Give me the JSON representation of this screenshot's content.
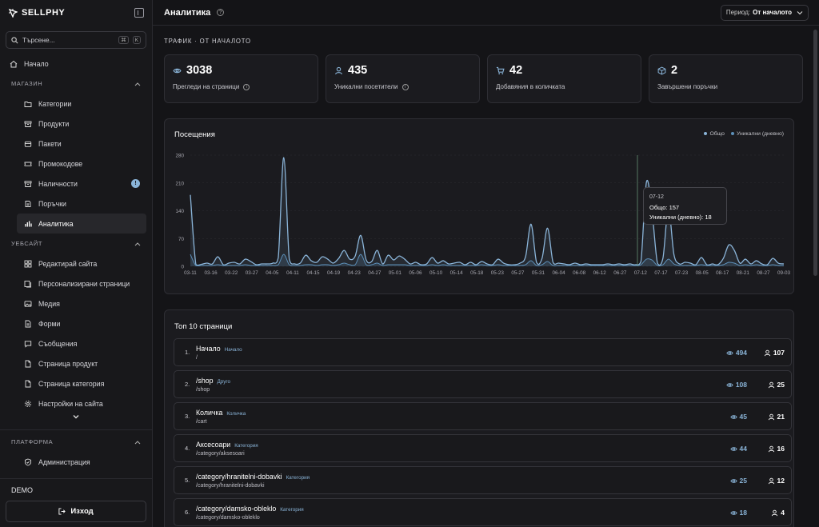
{
  "sidebar": {
    "brand": "SELLPHY",
    "search_placeholder": "Търсене...",
    "kbd1": "⌘",
    "kbd2": "K",
    "home": "Начало",
    "shop_section": "МАГАЗИН",
    "shop_items": [
      {
        "label": "Категории",
        "icon": "folder-icon"
      },
      {
        "label": "Продукти",
        "icon": "box-icon"
      },
      {
        "label": "Пакети",
        "icon": "package-icon"
      },
      {
        "label": "Промокодове",
        "icon": "ticket-icon"
      },
      {
        "label": "Наличности",
        "icon": "archive-icon",
        "badge": "!"
      },
      {
        "label": "Поръчки",
        "icon": "orders-icon"
      },
      {
        "label": "Аналитика",
        "icon": "bar-chart-icon",
        "active": true
      }
    ],
    "web_section": "УЕБСАЙТ",
    "web_items": [
      {
        "label": "Редактирай сайта",
        "icon": "grid-icon"
      },
      {
        "label": "Персонализирани страници",
        "icon": "pages-icon"
      },
      {
        "label": "Медия",
        "icon": "image-icon"
      },
      {
        "label": "Форми",
        "icon": "form-icon"
      },
      {
        "label": "Съобщения",
        "icon": "message-icon"
      },
      {
        "label": "Страница продукт",
        "icon": "file-icon"
      },
      {
        "label": "Страница категория",
        "icon": "file-icon"
      },
      {
        "label": "Настройки на сайта",
        "icon": "gear-icon"
      }
    ],
    "platform_section": "ПЛАТФОРМА",
    "platform_items": [
      {
        "label": "Администрация",
        "icon": "shield-icon"
      }
    ],
    "account_name": "DEMO",
    "logout_label": "Изход"
  },
  "header": {
    "title": "Аналитика",
    "period_label": "Период:",
    "period_value": "От началото"
  },
  "traffic": {
    "section_title": "ТРАФИК · ОТ НАЧАЛОТО",
    "stats": [
      {
        "value": "3038",
        "label": "Прегледи на страници",
        "icon": "eye-icon",
        "info": true
      },
      {
        "value": "435",
        "label": "Уникални посетители",
        "icon": "user-icon",
        "info": true
      },
      {
        "value": "42",
        "label": "Добавяния в количката",
        "icon": "cart-icon",
        "info": false
      },
      {
        "value": "2",
        "label": "Завършени поръчки",
        "icon": "cube-icon",
        "info": false
      }
    ]
  },
  "visits_card": {
    "title": "Посещения",
    "legend_total": "Общо",
    "legend_unique": "Уникални (дневно)",
    "tooltip": {
      "date": "07-12",
      "total_label": "Общо:",
      "total_value": "157",
      "unique_label": "Уникални (дневно):",
      "unique_value": "18"
    }
  },
  "chart_data": {
    "type": "area",
    "title": "Посещения",
    "y_ticks": [
      0,
      70,
      140,
      210,
      280
    ],
    "ylim": [
      0,
      280
    ],
    "x_tick_labels": [
      "03-11",
      "03-16",
      "03-22",
      "03-27",
      "04-05",
      "04-11",
      "04-15",
      "04-19",
      "04-23",
      "04-27",
      "05-01",
      "05-06",
      "05-10",
      "05-14",
      "05-18",
      "05-23",
      "05-27",
      "05-31",
      "06-04",
      "06-08",
      "06-12",
      "06-27",
      "07-12",
      "07-17",
      "07-23",
      "08-05",
      "08-17",
      "08-21",
      "08-27",
      "09-03"
    ],
    "series": [
      {
        "name": "Общо",
        "color": "#8ab4d8",
        "values": [
          180,
          5,
          5,
          8,
          6,
          24,
          4,
          8,
          10,
          6,
          18,
          12,
          4,
          6,
          6,
          8,
          22,
          274,
          18,
          6,
          8,
          28,
          14,
          10,
          24,
          18,
          8,
          20,
          40,
          18,
          26,
          78,
          16,
          12,
          40,
          6,
          28,
          16,
          26,
          18,
          6,
          10,
          4,
          6,
          22,
          8,
          14,
          6,
          8,
          10,
          4,
          10,
          4,
          12,
          6,
          4,
          18,
          8,
          4,
          4,
          8,
          24,
          106,
          10,
          20,
          96,
          10,
          8,
          6,
          4,
          8,
          4,
          6,
          4,
          4,
          4,
          6,
          4,
          6,
          4,
          6,
          4,
          12,
          212,
          140,
          8,
          20,
          146,
          30,
          6,
          10,
          8,
          4,
          22,
          4,
          6,
          4,
          20,
          54,
          40,
          8,
          18,
          6,
          14,
          6,
          4,
          20,
          8,
          6
        ]
      },
      {
        "name": "Уникални (дневно)",
        "color": "#5c8fb8",
        "values": [
          30,
          2,
          2,
          2,
          2,
          4,
          2,
          2,
          2,
          2,
          4,
          2,
          2,
          2,
          2,
          2,
          4,
          30,
          4,
          2,
          2,
          4,
          4,
          2,
          4,
          4,
          2,
          4,
          8,
          4,
          4,
          30,
          4,
          4,
          8,
          2,
          4,
          4,
          4,
          4,
          2,
          2,
          2,
          2,
          4,
          2,
          4,
          2,
          2,
          2,
          2,
          2,
          2,
          4,
          2,
          2,
          4,
          2,
          2,
          2,
          2,
          4,
          14,
          2,
          4,
          12,
          2,
          2,
          2,
          2,
          2,
          2,
          2,
          2,
          2,
          2,
          2,
          2,
          2,
          2,
          2,
          2,
          4,
          18,
          16,
          2,
          4,
          18,
          6,
          2,
          2,
          2,
          2,
          4,
          2,
          2,
          2,
          4,
          10,
          8,
          2,
          4,
          2,
          4,
          2,
          2,
          4,
          2,
          2
        ]
      }
    ]
  },
  "top_pages": {
    "title": "Топ 10 страници",
    "rows": [
      {
        "rank": "1.",
        "name": "Начало",
        "tag": "Начало",
        "path": "/",
        "views": "494",
        "visitors": "107"
      },
      {
        "rank": "2.",
        "name": "/shop",
        "tag": "Друго",
        "path": "/shop",
        "views": "108",
        "visitors": "25"
      },
      {
        "rank": "3.",
        "name": "Количка",
        "tag": "Количка",
        "path": "/cart",
        "views": "45",
        "visitors": "21"
      },
      {
        "rank": "4.",
        "name": "Аксесоари",
        "tag": "Категория",
        "path": "/category/aksesoari",
        "views": "44",
        "visitors": "16"
      },
      {
        "rank": "5.",
        "name": "/category/hranitelni-dobavki",
        "tag": "Категория",
        "path": "/category/hranitelni-dobavki",
        "views": "25",
        "visitors": "12"
      },
      {
        "rank": "6.",
        "name": "/category/damsko-obleklo",
        "tag": "Категория",
        "path": "/category/damsko-obleklo",
        "views": "18",
        "visitors": "4"
      }
    ]
  }
}
